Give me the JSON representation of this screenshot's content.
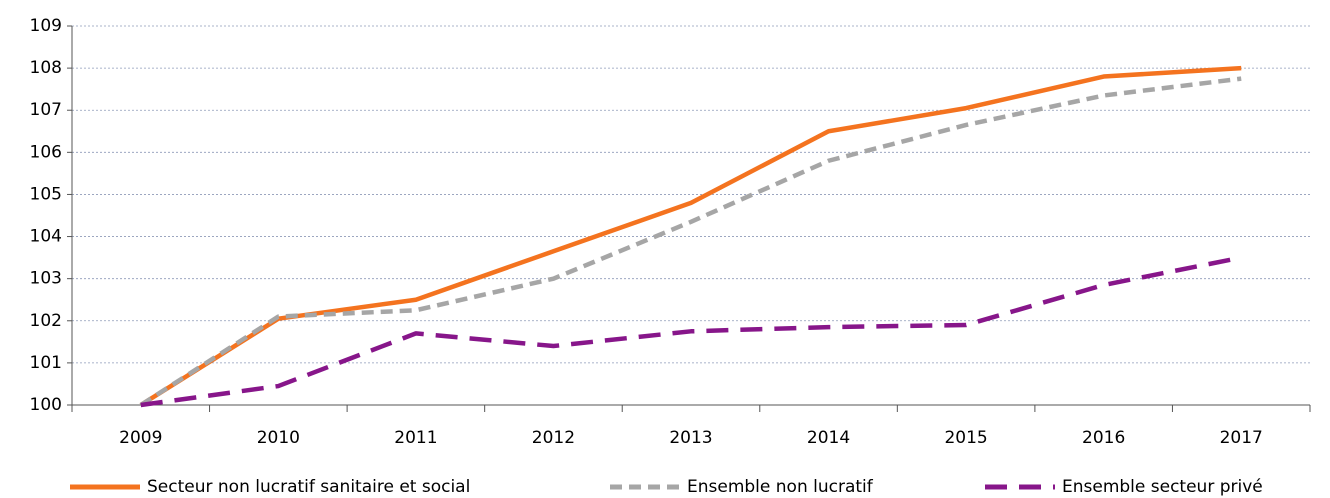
{
  "chart_data": {
    "type": "line",
    "categories": [
      "2009",
      "2010",
      "2011",
      "2012",
      "2013",
      "2014",
      "2015",
      "2016",
      "2017"
    ],
    "series": [
      {
        "name": "Secteur non lucratif sanitaire et social",
        "color": "#f4731f",
        "dash": "solid",
        "values": [
          100,
          102.05,
          102.5,
          103.65,
          104.8,
          106.5,
          107.05,
          107.8,
          108.0
        ]
      },
      {
        "name": "Ensemble non lucratif",
        "color": "#a6a6a6",
        "dash": "short",
        "values": [
          100,
          102.1,
          102.25,
          103.0,
          104.35,
          105.8,
          106.65,
          107.35,
          107.75
        ]
      },
      {
        "name": "Ensemble secteur privé",
        "color": "#87168a",
        "dash": "long",
        "values": [
          100,
          100.45,
          101.7,
          101.4,
          101.75,
          101.85,
          101.9,
          102.85,
          103.5
        ]
      }
    ],
    "ylim": [
      100,
      109
    ],
    "yticks": [
      100,
      101,
      102,
      103,
      104,
      105,
      106,
      107,
      108,
      109
    ],
    "grid": true,
    "legend": "bottom"
  }
}
